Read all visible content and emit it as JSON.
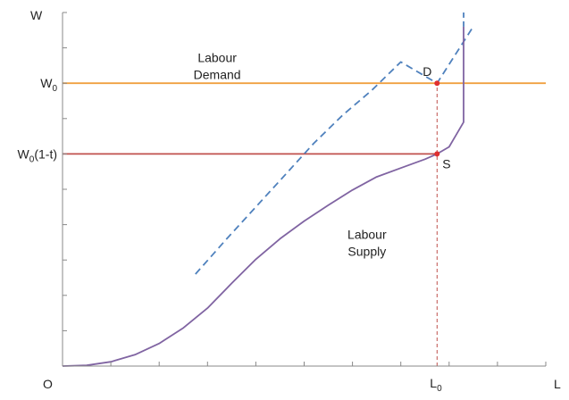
{
  "chart_data": {
    "type": "line",
    "title": "",
    "xlabel": "L",
    "ylabel": "W",
    "origin_label": "O",
    "xlim": [
      0,
      10
    ],
    "ylim": [
      0,
      10
    ],
    "x_tick_count": 10,
    "y_tick_count": 10,
    "grid": false,
    "legend": "none",
    "w0": 8,
    "w0_net": 6,
    "l0": 7.75,
    "y_tick_labels": [
      {
        "value": 8,
        "base": "W",
        "sub": "0",
        "suffix": ""
      },
      {
        "value": 6,
        "base": "W",
        "sub": "0",
        "suffix": "(1-t)"
      }
    ],
    "x_tick_labels": [
      {
        "value": 7.75,
        "base": "L",
        "sub": "0",
        "suffix": ""
      }
    ],
    "series": [
      {
        "role": "demand_line",
        "color": "#F0A040",
        "style": "solid",
        "points": [
          [
            0,
            8
          ],
          [
            10,
            8
          ]
        ]
      },
      {
        "role": "net_wage_line",
        "color": "#C0504D",
        "style": "solid",
        "points": [
          [
            0,
            6
          ],
          [
            7.75,
            6
          ]
        ]
      },
      {
        "role": "l0_drop_line",
        "color": "#C0504D",
        "style": "dashed",
        "points": [
          [
            7.75,
            0
          ],
          [
            7.75,
            8
          ]
        ]
      },
      {
        "role": "gross_supply_curve",
        "color": "#4F81BD",
        "style": "dashed",
        "points": [
          [
            2.75,
            2.6
          ],
          [
            3.4,
            3.6
          ],
          [
            4.0,
            4.5
          ],
          [
            4.6,
            5.4
          ],
          [
            5.2,
            6.3
          ],
          [
            5.8,
            7.1
          ],
          [
            6.4,
            7.8
          ],
          [
            7.0,
            8.6
          ],
          [
            7.75,
            8.0
          ],
          [
            8.5,
            9.6
          ]
        ]
      },
      {
        "role": "net_supply_curve",
        "color": "#8064A2",
        "style": "solid",
        "points": [
          [
            0,
            0
          ],
          [
            0.5,
            0.02
          ],
          [
            1.0,
            0.12
          ],
          [
            1.5,
            0.32
          ],
          [
            2.0,
            0.64
          ],
          [
            2.5,
            1.08
          ],
          [
            3.0,
            1.64
          ],
          [
            3.5,
            2.34
          ],
          [
            4.0,
            3.02
          ],
          [
            4.5,
            3.6
          ],
          [
            5.0,
            4.1
          ],
          [
            5.5,
            4.55
          ],
          [
            6.0,
            4.98
          ],
          [
            6.5,
            5.35
          ],
          [
            7.0,
            5.6
          ],
          [
            7.5,
            5.85
          ],
          [
            7.75,
            6.0
          ],
          [
            8.0,
            6.2
          ],
          [
            8.3,
            6.9
          ],
          [
            8.3,
            9.6
          ]
        ]
      }
    ],
    "vertical_spike": {
      "x": 8.3,
      "y_from": 9.6,
      "y_to": 10,
      "color": "#4F81BD"
    },
    "points": [
      {
        "name": "D",
        "x": 7.75,
        "y": 8,
        "color": "#E03030"
      },
      {
        "name": "S",
        "x": 7.75,
        "y": 6,
        "color": "#E03030"
      }
    ],
    "annotations": [
      {
        "lines": [
          "Labour",
          "Demand"
        ],
        "x": 3.2,
        "y": 8.6
      },
      {
        "lines": [
          "Labour",
          "Supply"
        ],
        "x": 6.3,
        "y": 3.6
      }
    ]
  }
}
